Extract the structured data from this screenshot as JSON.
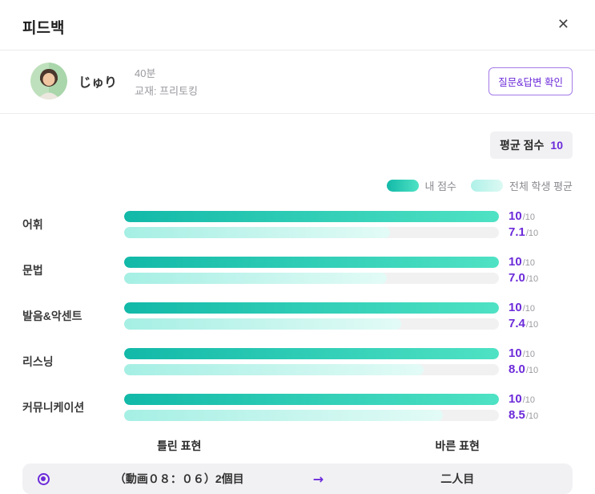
{
  "modal": {
    "title": "피드백",
    "close_icon": "✕"
  },
  "student": {
    "name": "じゅり",
    "duration": "40분",
    "material": "교재: 프리토킹",
    "qa_button_label": "질문&답변 확인"
  },
  "summary": {
    "average_label": "평균 점수",
    "average_value": "10"
  },
  "chart_data": {
    "type": "bar",
    "orientation": "horizontal",
    "max": 10,
    "unit": "/10",
    "legend_position": "top-right",
    "categories": [
      "어휘",
      "문법",
      "발음&악센트",
      "리스닝",
      "커뮤니케이션"
    ],
    "series": [
      {
        "name": "내 점수",
        "values": [
          10,
          10,
          10,
          10,
          10
        ],
        "labels": [
          "10",
          "10",
          "10",
          "10",
          "10"
        ]
      },
      {
        "name": "전체 학생 평균",
        "values": [
          7.1,
          7.0,
          7.4,
          8.0,
          8.5
        ],
        "labels": [
          "7.1",
          "7.0",
          "7.4",
          "8.0",
          "8.5"
        ]
      }
    ]
  },
  "corrections": {
    "wrong_header": "틀린 표현",
    "correct_header": "바른 표현",
    "items": [
      {
        "wrong": "（動画０８：０６）2個目",
        "arrow": "→",
        "correct": "二人目"
      }
    ]
  },
  "colors": {
    "accent_purple": "#6c2bd9",
    "teal_start": "#12b9a8",
    "teal_end": "#4fe2c4",
    "light_teal_start": "#a5efe4",
    "light_teal_end": "#e3fbf6",
    "track_gray": "#f1f1f2",
    "badge_bg": "#f1f1f4"
  }
}
